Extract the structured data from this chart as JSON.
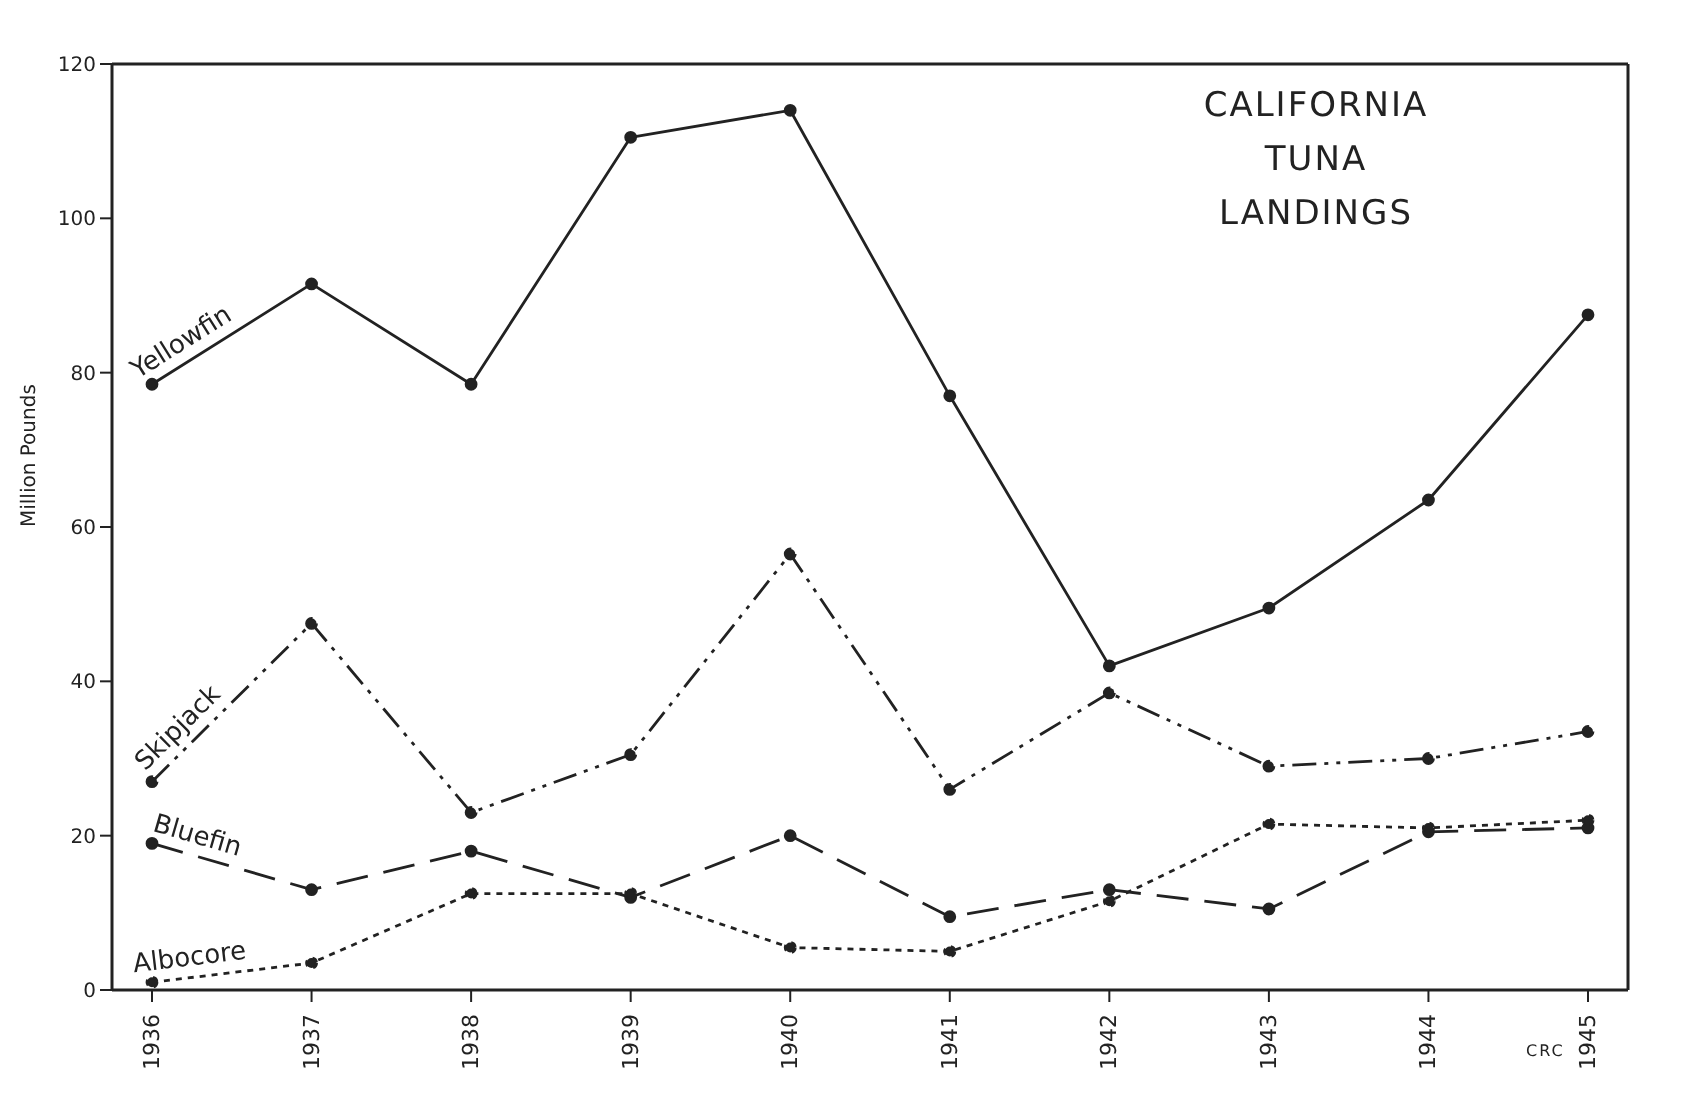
{
  "chart_data": {
    "type": "line",
    "title": "CALIFORNIA\nTUNA\nLANDINGS",
    "ylabel": "Million   Pounds",
    "categories": [
      "1936",
      "1937",
      "1938",
      "1939",
      "1940",
      "1941",
      "1942",
      "1943",
      "1944",
      "1945"
    ],
    "series": [
      {
        "name": "Yellowfin",
        "color": "#222222",
        "line_style": "solid",
        "values": [
          78.5,
          91.5,
          78.5,
          110.5,
          114,
          77,
          42,
          49.5,
          63.5,
          87.5
        ]
      },
      {
        "name": "Skipjack",
        "color": "#222222",
        "line_style": "dashdot",
        "values": [
          27,
          47.5,
          23,
          30.5,
          56.5,
          26,
          38.5,
          29,
          30,
          33.5
        ]
      },
      {
        "name": "Bluefin",
        "color": "#222222",
        "line_style": "dashed",
        "values": [
          19,
          13,
          18,
          12,
          20,
          9.5,
          13,
          10.5,
          20.5,
          21
        ]
      },
      {
        "name": "Albocore",
        "color": "#222222",
        "line_style": "dotted",
        "values": [
          1,
          3.5,
          12.5,
          12.5,
          5.5,
          5,
          11.5,
          21.5,
          21,
          22
        ]
      }
    ],
    "ylim": [
      0,
      120
    ],
    "yticks": [
      0,
      20,
      40,
      60,
      80,
      100,
      120
    ],
    "tick_labels": "xy",
    "marker": "circle",
    "legend": false,
    "annotations": [
      "CRC"
    ]
  }
}
